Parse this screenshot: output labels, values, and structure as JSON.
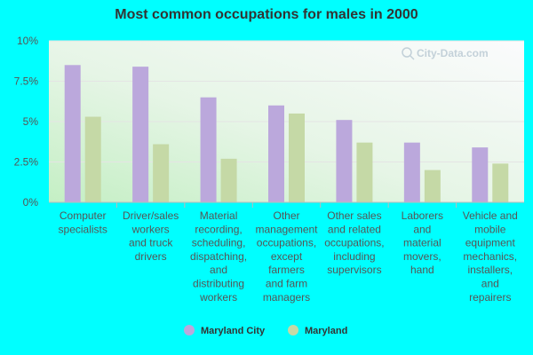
{
  "chart_data": {
    "type": "bar",
    "title": "Most common occupations for males in 2000",
    "categories": [
      "Computer specialists",
      "Driver/sales workers and truck drivers",
      "Material recording, scheduling, dispatching, and distributing workers",
      "Other management occupations, except farmers and farm managers",
      "Other sales and related occupations, including supervisors",
      "Laborers and material movers, hand",
      "Vehicle and mobile equipment mechanics, installers, and repairers"
    ],
    "category_lines": [
      [
        "Computer",
        "specialists"
      ],
      [
        "Driver/sales",
        "workers",
        "and truck",
        "drivers"
      ],
      [
        "Material",
        "recording,",
        "scheduling,",
        "dispatching,",
        "and",
        "distributing",
        "workers"
      ],
      [
        "Other",
        "management",
        "occupations,",
        "except",
        "farmers",
        "and farm",
        "managers"
      ],
      [
        "Other sales",
        "and related",
        "occupations,",
        "including",
        "supervisors"
      ],
      [
        "Laborers",
        "and",
        "material",
        "movers,",
        "hand"
      ],
      [
        "Vehicle and",
        "mobile",
        "equipment",
        "mechanics,",
        "installers,",
        "and",
        "repairers"
      ]
    ],
    "series": [
      {
        "name": "Maryland City",
        "color": "#bba8dc",
        "values": [
          8.5,
          8.4,
          6.5,
          6.0,
          5.1,
          3.7,
          3.4
        ]
      },
      {
        "name": "Maryland",
        "color": "#c5d9a6",
        "values": [
          5.3,
          3.6,
          2.7,
          5.5,
          3.7,
          2.0,
          2.4
        ]
      }
    ],
    "ylim": [
      0,
      10
    ],
    "yticks": [
      0,
      2.5,
      5,
      7.5,
      10
    ],
    "ytick_labels": [
      "0%",
      "2.5%",
      "5%",
      "7.5%",
      "10%"
    ],
    "legend_position": "bottom",
    "watermark": "City-Data.com",
    "colors": {
      "background": "#00ffff",
      "plot_top": "#f7f7fb",
      "plot_bottom": "#c8f0c8"
    }
  }
}
